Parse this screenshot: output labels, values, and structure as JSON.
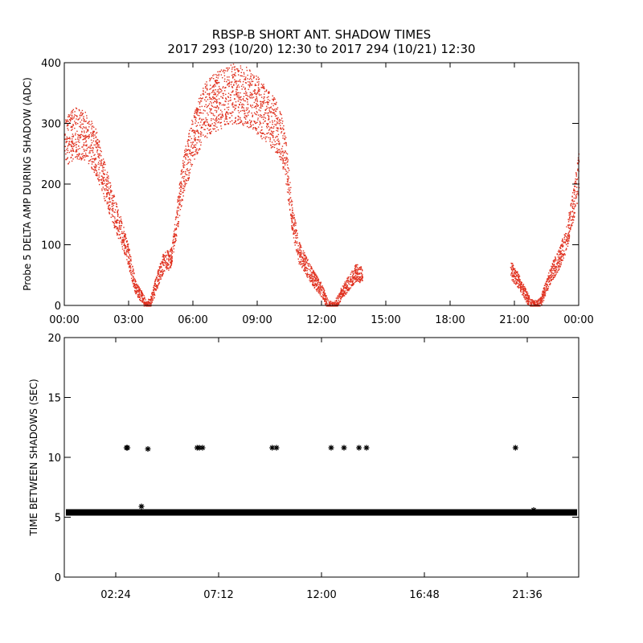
{
  "title_line1": "RBSP-B SHORT ANT. SHADOW TIMES",
  "title_line2": "2017 293 (10/20) 12:30 to 2017 294 (10/21) 12:30",
  "colors": {
    "delta_amp": "#e0301e",
    "time_between": "#000000",
    "axes": "#000000"
  },
  "chart_data": [
    {
      "type": "scatter",
      "ylabel": "Probe 5 DELTA AMP DURING SHADOW (ADC)",
      "xlabel": "",
      "xlim": [
        0,
        24
      ],
      "ylim": [
        0,
        400
      ],
      "x_tick_labels": [
        "00:00",
        "03:00",
        "06:00",
        "09:00",
        "12:00",
        "15:00",
        "18:00",
        "21:00",
        "00:00"
      ],
      "y_tick_labels": [
        "0",
        "100",
        "200",
        "300",
        "400"
      ],
      "series": [
        {
          "x_hours": [
            0.0,
            0.5,
            1.0,
            1.5,
            2.0,
            2.5,
            2.9,
            3.3,
            3.6,
            3.8,
            4.0,
            4.3,
            4.6,
            5.0,
            5.3,
            5.5,
            6.0,
            6.5,
            7.0,
            7.5,
            8.0,
            8.5,
            9.0,
            9.5,
            10.0,
            10.3,
            10.6,
            10.9,
            11.2,
            11.6,
            12.0,
            12.3,
            12.6,
            12.9,
            13.3,
            13.6,
            13.9,
            20.8,
            21.1,
            21.4,
            21.7,
            21.9,
            22.2,
            22.5,
            22.8,
            23.1,
            23.4,
            23.7,
            24.0
          ],
          "y": [
            270,
            285,
            280,
            250,
            190,
            135,
            95,
            30,
            15,
            0,
            5,
            40,
            70,
            80,
            160,
            210,
            275,
            320,
            335,
            345,
            350,
            345,
            330,
            310,
            290,
            245,
            150,
            90,
            70,
            45,
            25,
            0,
            0,
            20,
            40,
            55,
            50,
            60,
            45,
            25,
            5,
            0,
            5,
            35,
            60,
            80,
            110,
            160,
            220
          ]
        }
      ]
    },
    {
      "type": "scatter",
      "ylabel": "TIME BETWEEN SHADOWS (SEC)",
      "xlabel": "",
      "xlim": [
        0,
        24
      ],
      "ylim": [
        0,
        20
      ],
      "x_tick_labels": [
        "02:24",
        "07:12",
        "12:00",
        "16:48",
        "21:36"
      ],
      "y_tick_labels": [
        "0",
        "5",
        "10",
        "15",
        "20"
      ],
      "baseline_value": 5.4,
      "outliers": [
        {
          "x_hours": 2.9,
          "y": 10.8
        },
        {
          "x_hours": 2.95,
          "y": 10.8
        },
        {
          "x_hours": 3.6,
          "y": 5.9
        },
        {
          "x_hours": 3.9,
          "y": 10.7
        },
        {
          "x_hours": 6.2,
          "y": 10.8
        },
        {
          "x_hours": 6.3,
          "y": 10.8
        },
        {
          "x_hours": 6.45,
          "y": 10.8
        },
        {
          "x_hours": 9.7,
          "y": 10.8
        },
        {
          "x_hours": 9.9,
          "y": 10.8
        },
        {
          "x_hours": 12.45,
          "y": 10.8
        },
        {
          "x_hours": 13.05,
          "y": 10.8
        },
        {
          "x_hours": 13.75,
          "y": 10.8
        },
        {
          "x_hours": 14.1,
          "y": 10.8
        },
        {
          "x_hours": 21.05,
          "y": 10.8
        },
        {
          "x_hours": 21.9,
          "y": 5.6
        }
      ]
    }
  ]
}
